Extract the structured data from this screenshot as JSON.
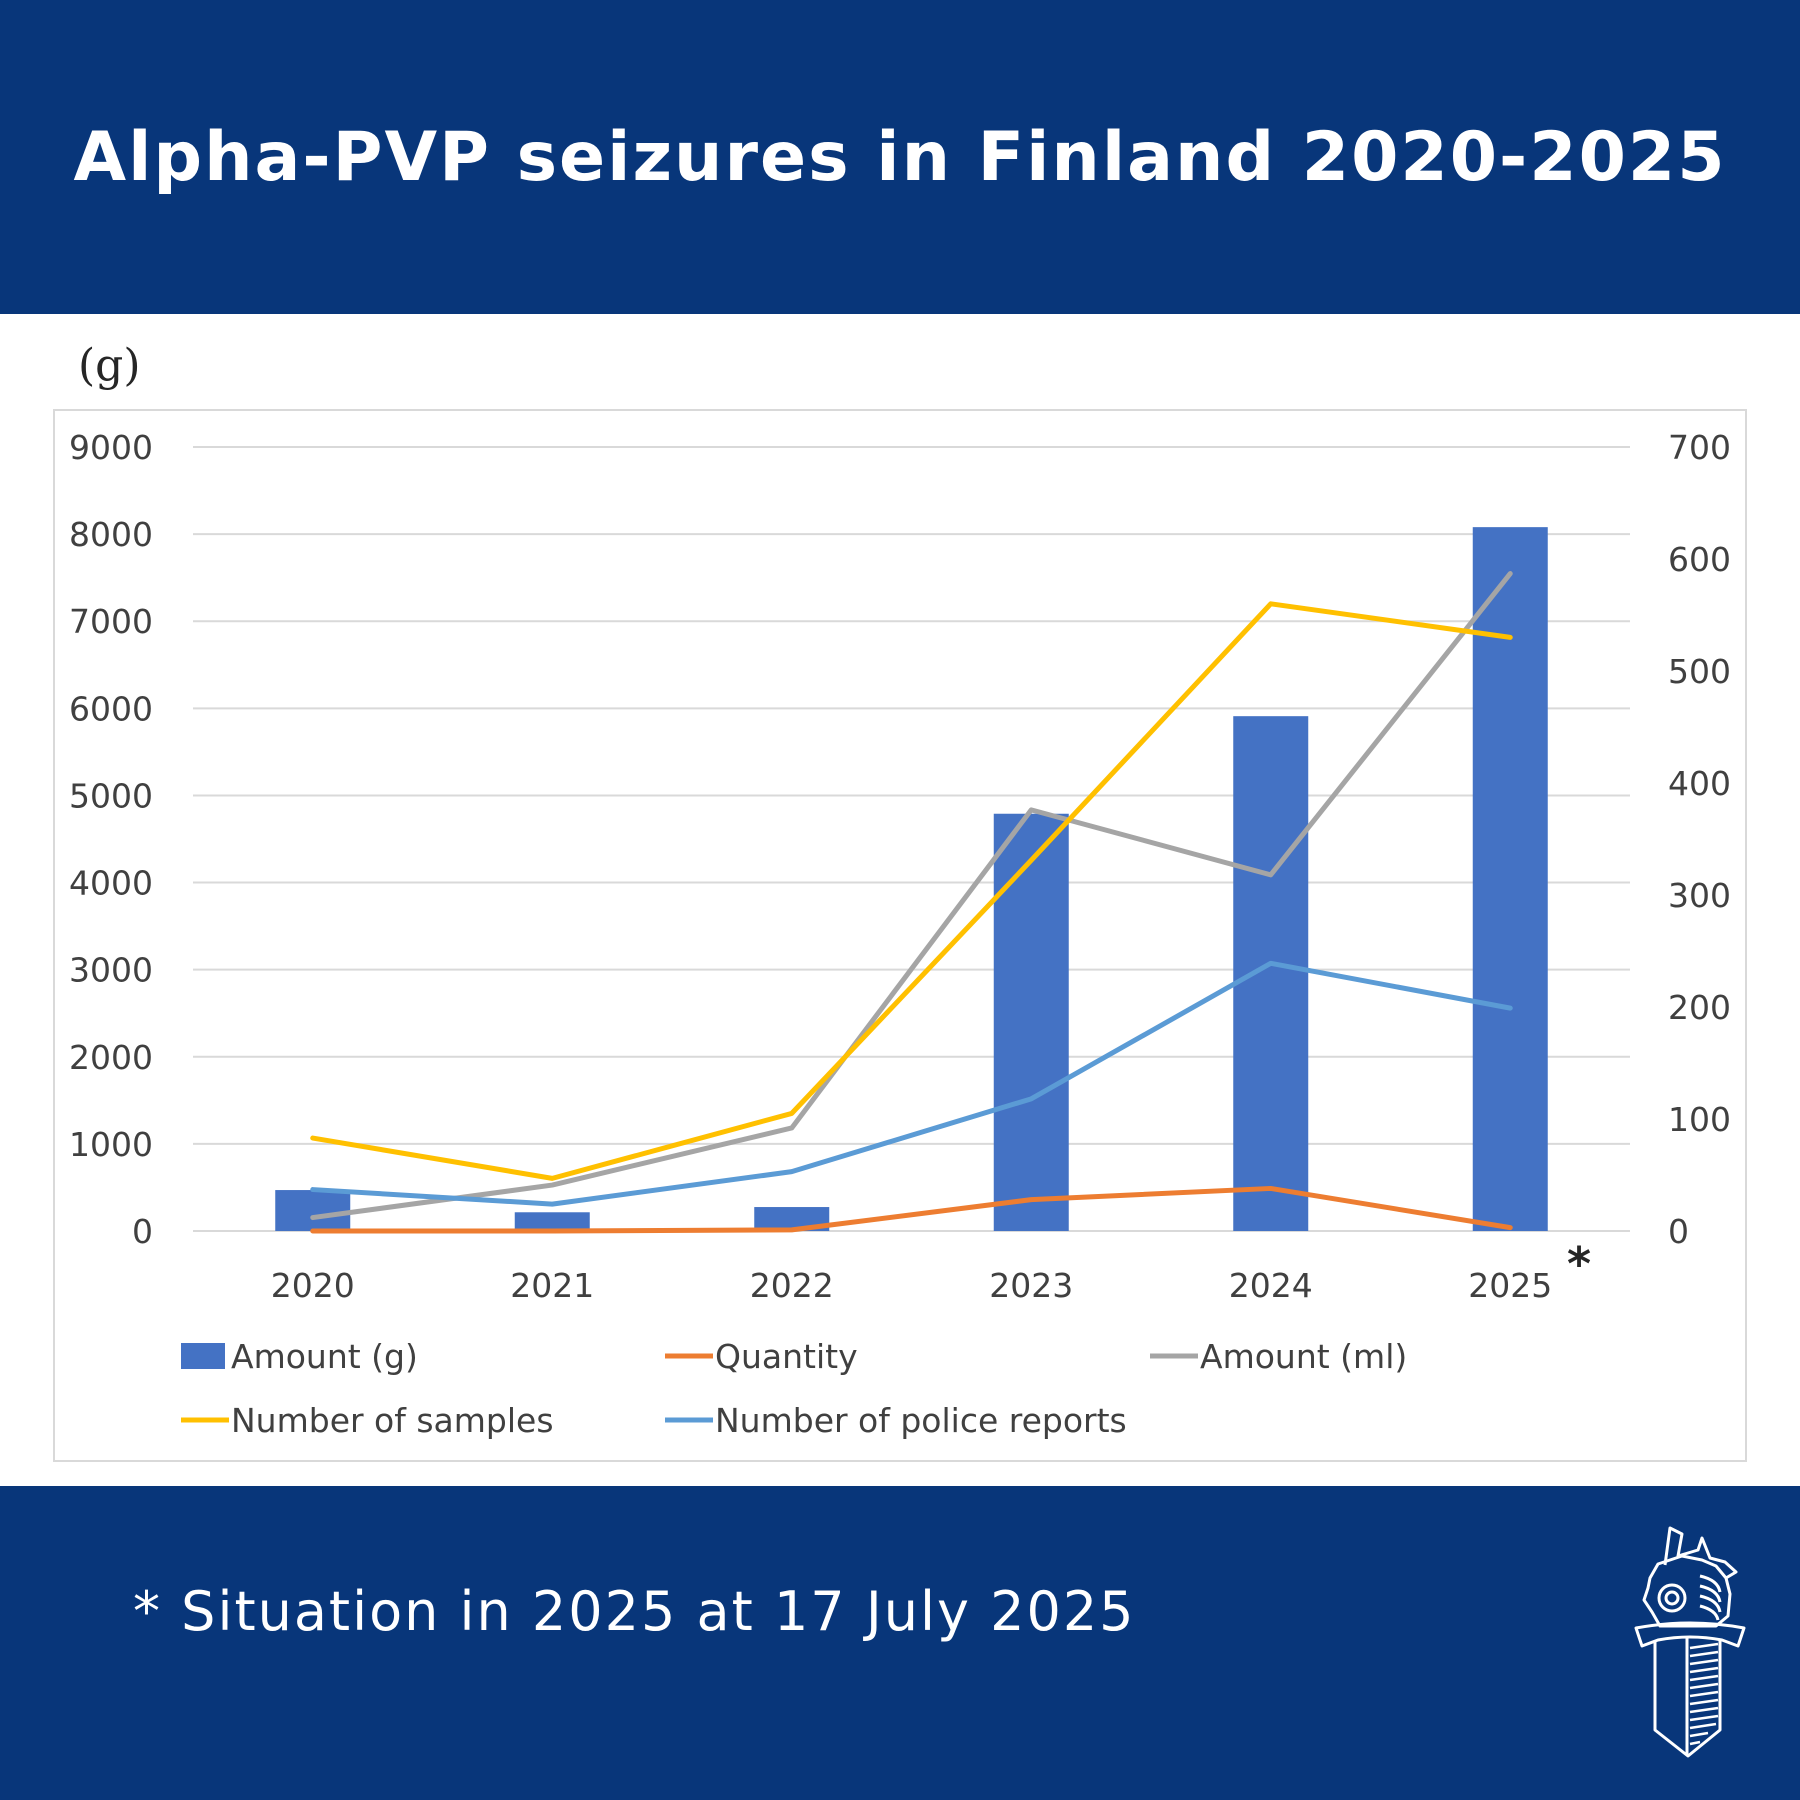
{
  "header": {
    "title": "Alpha-PVP seizures in Finland 2020-2025",
    "background_color": "#08367A"
  },
  "chart": {
    "left_axis_unit": "(g)",
    "asterisk": "*"
  },
  "footer": {
    "footnote": "* Situation in 2025 at 17 July 2025",
    "logo": "police-badge-icon"
  },
  "chart_data": {
    "type": "bar",
    "title": "Alpha-PVP seizures in Finland 2020-2025",
    "xlabel": "",
    "ylabel": "(g)",
    "categories": [
      "2020",
      "2021",
      "2022",
      "2023",
      "2024",
      "2025"
    ],
    "category_annotation": {
      "2025": "*"
    },
    "ylim": [
      0,
      9000
    ],
    "y_ticks": [
      0,
      1000,
      2000,
      3000,
      4000,
      5000,
      6000,
      7000,
      8000,
      9000
    ],
    "y2lim": [
      0,
      700
    ],
    "y2_ticks": [
      0,
      100,
      200,
      300,
      400,
      500,
      600,
      700
    ],
    "grid": true,
    "legend_position": "bottom",
    "series": [
      {
        "name": "Amount (g)",
        "type": "bar",
        "axis": "left",
        "color": "#4472C4",
        "values": [
          470,
          215,
          275,
          4790,
          5910,
          8080
        ]
      },
      {
        "name": "Quantity",
        "type": "line",
        "axis": "right",
        "color": "#ED7D31",
        "values": [
          0,
          0,
          1,
          28,
          38,
          3
        ]
      },
      {
        "name": "Amount  (ml)",
        "type": "line",
        "axis": "right",
        "color": "#A5A5A5",
        "values": [
          12,
          41,
          92,
          376,
          318,
          587
        ]
      },
      {
        "name": "Number of samples",
        "type": "line",
        "axis": "right",
        "color": "#FFC000",
        "values": [
          83,
          47,
          105,
          331,
          560,
          530
        ]
      },
      {
        "name": "Number of police reports",
        "type": "line",
        "axis": "right",
        "color": "#5B9BD5",
        "values": [
          37,
          24,
          53,
          118,
          239,
          199
        ]
      }
    ]
  }
}
